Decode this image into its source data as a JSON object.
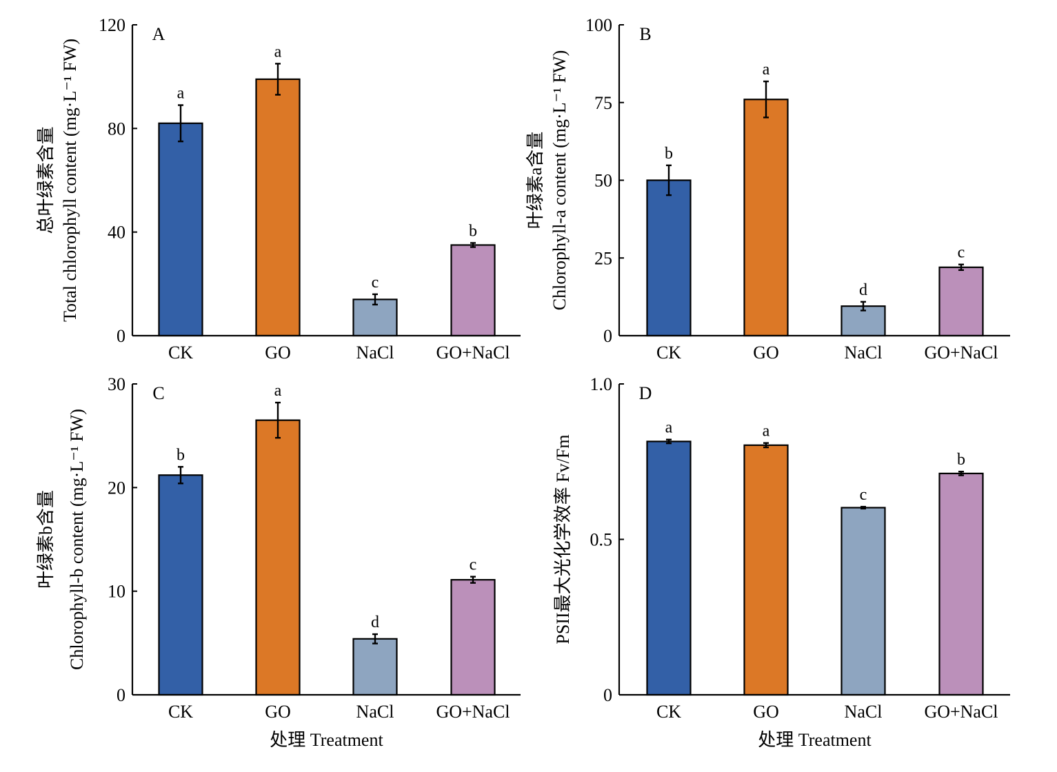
{
  "figure": {
    "xlabel_bottom": "处理 Treatment",
    "categories": [
      "CK",
      "GO",
      "NaCl",
      "GO+NaCl"
    ],
    "colors": [
      "#3360a7",
      "#dc7826",
      "#8ea5c0",
      "#bb90ba"
    ]
  },
  "chart_data": [
    {
      "type": "bar",
      "panel": "A",
      "categories": [
        "CK",
        "GO",
        "NaCl",
        "GO+NaCl"
      ],
      "values": [
        82,
        99,
        14,
        35
      ],
      "errors": [
        7,
        6,
        2,
        0.8
      ],
      "significance": [
        "a",
        "a",
        "c",
        "b"
      ],
      "ylabel_line1": "总叶绿素含量",
      "ylabel_line2": "Total chlorophyll content (mg·L⁻¹ FW)",
      "yticks": [
        "0",
        "40",
        "80",
        "120"
      ],
      "ylim": [
        0,
        120
      ],
      "xlabel": ""
    },
    {
      "type": "bar",
      "panel": "B",
      "categories": [
        "CK",
        "GO",
        "NaCl",
        "GO+NaCl"
      ],
      "values": [
        50,
        76,
        9.5,
        22
      ],
      "errors": [
        4.8,
        5.8,
        1.4,
        0.9
      ],
      "significance": [
        "b",
        "a",
        "d",
        "c"
      ],
      "ylabel_line1": "叶绿素a含量",
      "ylabel_line2": "Chlorophyll-a content (mg·L⁻¹ FW)",
      "yticks": [
        "0",
        "25",
        "50",
        "75",
        "100"
      ],
      "ylim": [
        0,
        100
      ],
      "xlabel": ""
    },
    {
      "type": "bar",
      "panel": "C",
      "categories": [
        "CK",
        "GO",
        "NaCl",
        "GO+NaCl"
      ],
      "values": [
        21.2,
        26.5,
        5.4,
        11.1
      ],
      "errors": [
        0.8,
        1.7,
        0.45,
        0.3
      ],
      "significance": [
        "b",
        "a",
        "d",
        "c"
      ],
      "ylabel_line1": "叶绿素b含量",
      "ylabel_line2": "Chlorophyll-b content (mg·L⁻¹ FW)",
      "yticks": [
        "0",
        "10",
        "20",
        "30"
      ],
      "ylim": [
        0,
        30
      ],
      "xlabel": "处理 Treatment"
    },
    {
      "type": "bar",
      "panel": "D",
      "categories": [
        "CK",
        "GO",
        "NaCl",
        "GO+NaCl"
      ],
      "values": [
        0.815,
        0.803,
        0.602,
        0.712
      ],
      "errors": [
        0.006,
        0.007,
        0.003,
        0.006
      ],
      "significance": [
        "a",
        "a",
        "c",
        "b"
      ],
      "ylabel_line1": "PSII最大光化学效率 Fv/Fm",
      "ylabel_line2": "",
      "yticks": [
        "0",
        "0.5",
        "1.0"
      ],
      "ylim": [
        0,
        1
      ],
      "xlabel": "处理 Treatment"
    }
  ]
}
